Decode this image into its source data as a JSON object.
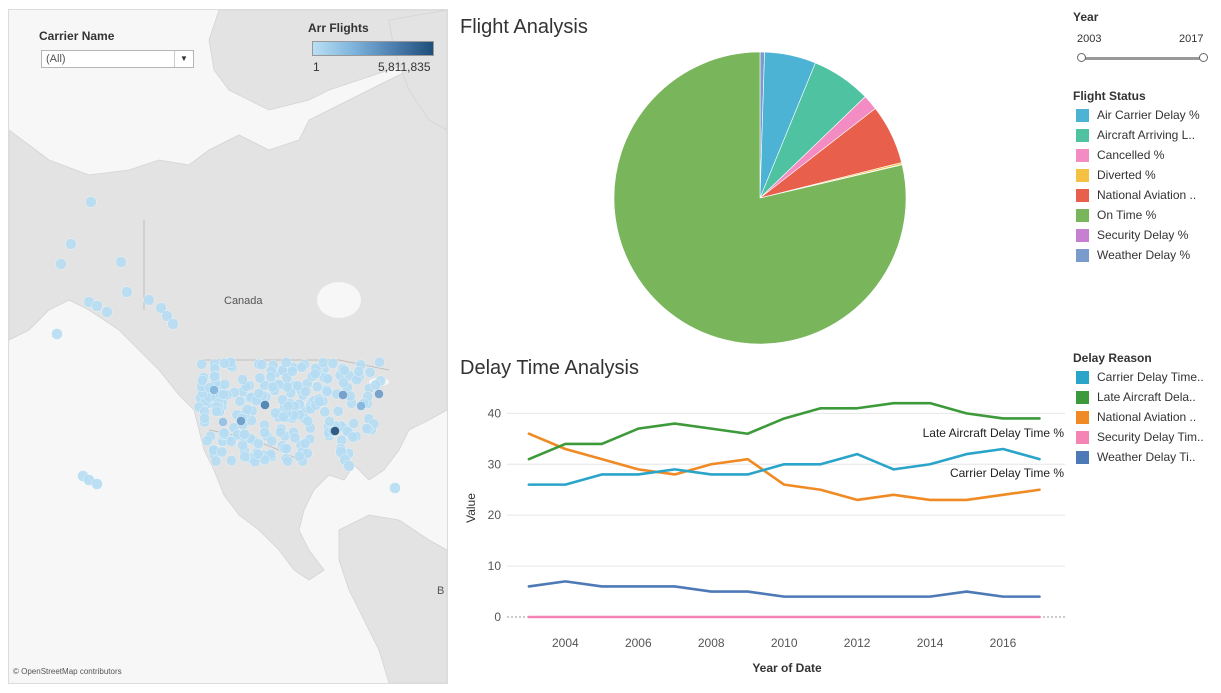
{
  "map": {
    "carrier_filter": {
      "label": "Carrier Name",
      "value": "(All)"
    },
    "arr_flights_legend": {
      "title": "Arr Flights",
      "min": "1",
      "max": "5,811,835"
    },
    "country_label": "Canada",
    "credit": "© OpenStreetMap contributors"
  },
  "pie_title": "Flight Analysis",
  "line_title": "Delay Time Analysis",
  "year_filter": {
    "title": "Year",
    "start": "2003",
    "end": "2017"
  },
  "flight_status_legend": {
    "title": "Flight Status",
    "items": [
      {
        "label": "Air Carrier Delay %",
        "color": "#4cb3d4"
      },
      {
        "label": "Aircraft Arriving L..",
        "color": "#4fc3a1"
      },
      {
        "label": "Cancelled %",
        "color": "#f28cc2"
      },
      {
        "label": "Diverted %",
        "color": "#f5c142"
      },
      {
        "label": "National Aviation ..",
        "color": "#e8604c"
      },
      {
        "label": "On Time %",
        "color": "#78b55b"
      },
      {
        "label": "Security Delay %",
        "color": "#c77fd1"
      },
      {
        "label": "Weather Delay %",
        "color": "#7a9bcb"
      }
    ]
  },
  "delay_reason_legend": {
    "title": "Delay Reason",
    "items": [
      {
        "label": "Carrier Delay Time..",
        "color": "#2ba4c9"
      },
      {
        "label": "Late Aircraft Dela..",
        "color": "#3d9a3a"
      },
      {
        "label": "National Aviation ..",
        "color": "#f08a24"
      },
      {
        "label": "Security Delay Tim..",
        "color": "#f583b4"
      },
      {
        "label": "Weather Delay Ti..",
        "color": "#4e79b7"
      }
    ]
  },
  "chart_data": [
    {
      "type": "pie",
      "title": "Flight Analysis",
      "slices": [
        {
          "name": "Weather Delay %",
          "value": 0.5,
          "color": "#7a9bcb"
        },
        {
          "name": "Air Carrier Delay %",
          "value": 5.7,
          "color": "#4cb3d4"
        },
        {
          "name": "Aircraft Arriving L..",
          "value": 6.6,
          "color": "#4fc3a1"
        },
        {
          "name": "Cancelled %",
          "value": 1.7,
          "color": "#f28cc2"
        },
        {
          "name": "National Aviation ..",
          "value": 6.6,
          "color": "#e8604c"
        },
        {
          "name": "Diverted %",
          "value": 0.2,
          "color": "#f5c142"
        },
        {
          "name": "Security Delay %",
          "value": 0.05,
          "color": "#c77fd1"
        },
        {
          "name": "On Time %",
          "value": 78.65,
          "color": "#78b55b"
        }
      ]
    },
    {
      "type": "line",
      "title": "Delay Time Analysis",
      "xlabel": "Year of Date",
      "ylabel": "Value",
      "x": [
        2003,
        2004,
        2005,
        2006,
        2007,
        2008,
        2009,
        2010,
        2011,
        2012,
        2013,
        2014,
        2015,
        2016,
        2017
      ],
      "xticks": [
        "2004",
        "2006",
        "2008",
        "2010",
        "2012",
        "2014",
        "2016"
      ],
      "yticks": [
        "0",
        "10",
        "20",
        "30",
        "40"
      ],
      "xlim": [
        2002.4,
        2017.7
      ],
      "ylim": [
        0,
        44
      ],
      "grid": true,
      "series": [
        {
          "name": "Carrier Delay Time %",
          "color": "#2ba4c9",
          "label": "Carrier Delay Time %",
          "values": [
            26,
            26,
            28,
            28,
            29,
            28,
            28,
            30,
            30,
            32,
            29,
            30,
            32,
            33,
            31
          ]
        },
        {
          "name": "Late Aircraft Delay Time %",
          "color": "#3d9a3a",
          "label": "Late Aircraft Delay Time %",
          "values": [
            31,
            34,
            34,
            37,
            38,
            37,
            36,
            39,
            41,
            41,
            42,
            42,
            40,
            39,
            39
          ]
        },
        {
          "name": "National Aviation ..",
          "color": "#f08a24",
          "values": [
            36,
            33,
            31,
            29,
            28,
            30,
            31,
            26,
            25,
            23,
            24,
            23,
            23,
            24,
            25
          ]
        },
        {
          "name": "Security Delay Tim..",
          "color": "#f583b4",
          "values": [
            0,
            0,
            0,
            0,
            0,
            0,
            0,
            0,
            0,
            0,
            0,
            0,
            0,
            0,
            0
          ]
        },
        {
          "name": "Weather Delay Ti..",
          "color": "#4e79b7",
          "values": [
            6,
            7,
            6,
            6,
            6,
            5,
            5,
            4,
            4,
            4,
            4,
            4,
            5,
            4,
            4
          ]
        }
      ]
    }
  ]
}
